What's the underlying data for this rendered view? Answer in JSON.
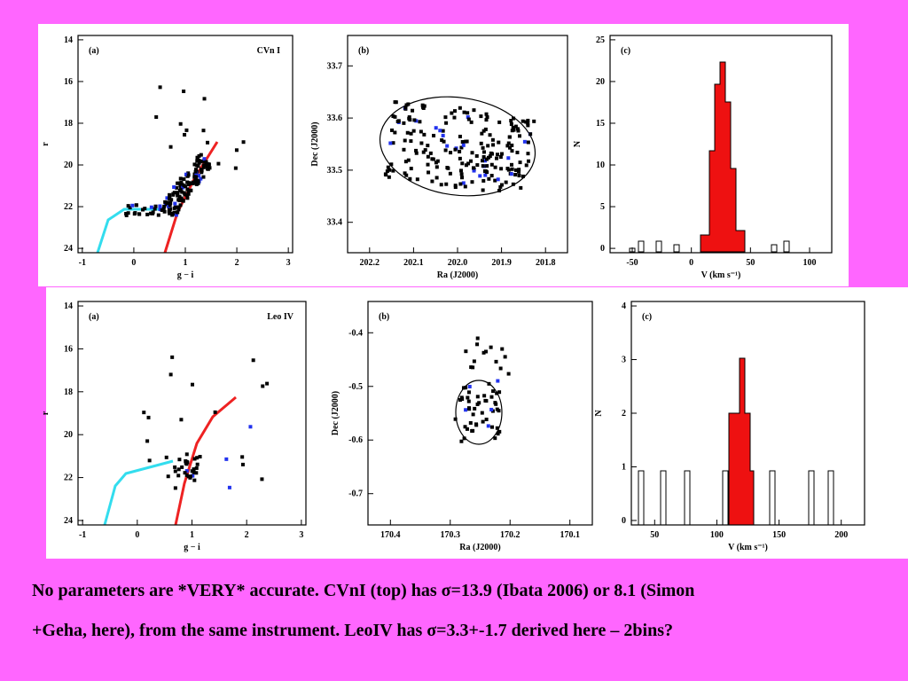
{
  "panels": [
    {
      "label": "(a)",
      "title": "CVn I",
      "xlabel": "g − i",
      "ylabel": "r",
      "xticks": [
        "-1",
        "0",
        "1",
        "2",
        "3"
      ],
      "yticks": [
        "14",
        "16",
        "18",
        "20",
        "22",
        "24"
      ]
    },
    {
      "label": "(b)",
      "xlabel": "Ra (J2000)",
      "ylabel": "Dec (J2000)",
      "xticks": [
        "202.2",
        "202.1",
        "202.0",
        "201.9",
        "201.8"
      ],
      "yticks": [
        "33.7",
        "33.6",
        "33.5",
        "33.4"
      ]
    },
    {
      "label": "(c)",
      "xlabel": "V (km s⁻¹)",
      "ylabel": "N",
      "xticks": [
        "-50",
        "0",
        "50",
        "100"
      ],
      "yticks": [
        "25",
        "20",
        "15",
        "10",
        "5",
        "0"
      ]
    },
    {
      "label": "(a)",
      "title": "Leo IV",
      "xlabel": "g − i",
      "ylabel": "r",
      "xticks": [
        "-1",
        "0",
        "1",
        "2",
        "3"
      ],
      "yticks": [
        "14",
        "16",
        "18",
        "20",
        "22",
        "24"
      ]
    },
    {
      "label": "(b)",
      "xlabel": "Ra (J2000)",
      "ylabel": "Dec (J2000)",
      "xticks": [
        "170.4",
        "170.3",
        "170.2",
        "170.1"
      ],
      "yticks": [
        "-0.4",
        "-0.5",
        "-0.6",
        "-0.7"
      ]
    },
    {
      "label": "(c)",
      "xlabel": "V (km s⁻¹)",
      "ylabel": "N",
      "xticks": [
        "50",
        "100",
        "150",
        "200"
      ],
      "yticks": [
        "4",
        "3",
        "2",
        "1",
        "0"
      ]
    }
  ],
  "caption": [
    "No parameters are *VERY* accurate. CVnI (top) has σ=13.9 (Ibata 2006) or 8.1 (Simon",
    "+Geha, here), from the same instrument. LeoIV has σ=3.3+-1.7  derived here – 2bins?"
  ]
}
